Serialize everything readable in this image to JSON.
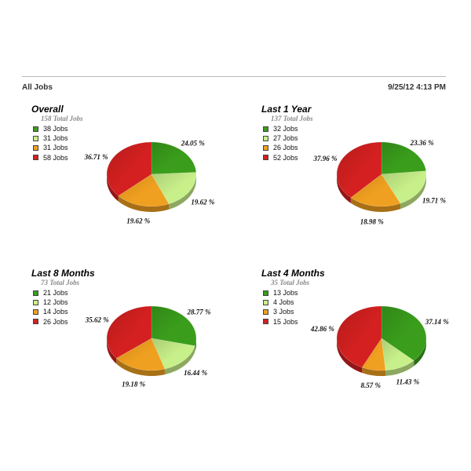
{
  "header": {
    "title": "All Jobs",
    "timestamp": "9/25/12 4:13 PM"
  },
  "colors": {
    "green": "#3a9e1c",
    "lightgreen": "#c8f08a",
    "orange": "#f0a020",
    "red": "#d42020"
  },
  "panels": [
    {
      "title": "Overall",
      "subtitle": "158 Total Jobs",
      "legend": [
        "38 Jobs",
        "31 Jobs",
        "31 Jobs",
        "58 Jobs"
      ],
      "percent_labels": [
        "24.05 %",
        "19.62 %",
        "19.62 %",
        "36.71 %"
      ]
    },
    {
      "title": "Last 1 Year",
      "subtitle": "137 Total Jobs",
      "legend": [
        "32 Jobs",
        "27 Jobs",
        "26 Jobs",
        "52 Jobs"
      ],
      "percent_labels": [
        "23.36 %",
        "19.71 %",
        "18.98 %",
        "37.96 %"
      ]
    },
    {
      "title": "Last 8 Months",
      "subtitle": "73 Total Jobs",
      "legend": [
        "21 Jobs",
        "12 Jobs",
        "14 Jobs",
        "26 Jobs"
      ],
      "percent_labels": [
        "28.77 %",
        "16.44 %",
        "19.18 %",
        "35.62 %"
      ]
    },
    {
      "title": "Last 4 Months",
      "subtitle": "35 Total Jobs",
      "legend": [
        "13 Jobs",
        "4 Jobs",
        "3 Jobs",
        "15 Jobs"
      ],
      "percent_labels": [
        "37.14 %",
        "11.43 %",
        "8.57 %",
        "42.86 %"
      ]
    }
  ],
  "chart_data": [
    {
      "type": "pie",
      "title": "Overall",
      "subtitle": "158 Total Jobs",
      "categories": [
        "38 Jobs",
        "31 Jobs",
        "31 Jobs",
        "58 Jobs"
      ],
      "values": [
        38,
        31,
        31,
        58
      ],
      "percentages": [
        24.05,
        19.62,
        19.62,
        36.71
      ],
      "legend": "left"
    },
    {
      "type": "pie",
      "title": "Last 1 Year",
      "subtitle": "137 Total Jobs",
      "categories": [
        "32 Jobs",
        "27 Jobs",
        "26 Jobs",
        "52 Jobs"
      ],
      "values": [
        32,
        27,
        26,
        52
      ],
      "percentages": [
        23.36,
        19.71,
        18.98,
        37.96
      ],
      "legend": "left"
    },
    {
      "type": "pie",
      "title": "Last 8 Months",
      "subtitle": "73 Total Jobs",
      "categories": [
        "21 Jobs",
        "12 Jobs",
        "14 Jobs",
        "26 Jobs"
      ],
      "values": [
        21,
        12,
        14,
        26
      ],
      "percentages": [
        28.77,
        16.44,
        19.18,
        35.62
      ],
      "legend": "left"
    },
    {
      "type": "pie",
      "title": "Last 4 Months",
      "subtitle": "35 Total Jobs",
      "categories": [
        "13 Jobs",
        "4 Jobs",
        "3 Jobs",
        "15 Jobs"
      ],
      "values": [
        13,
        4,
        3,
        15
      ],
      "percentages": [
        37.14,
        11.43,
        8.57,
        42.86
      ],
      "legend": "left"
    }
  ]
}
